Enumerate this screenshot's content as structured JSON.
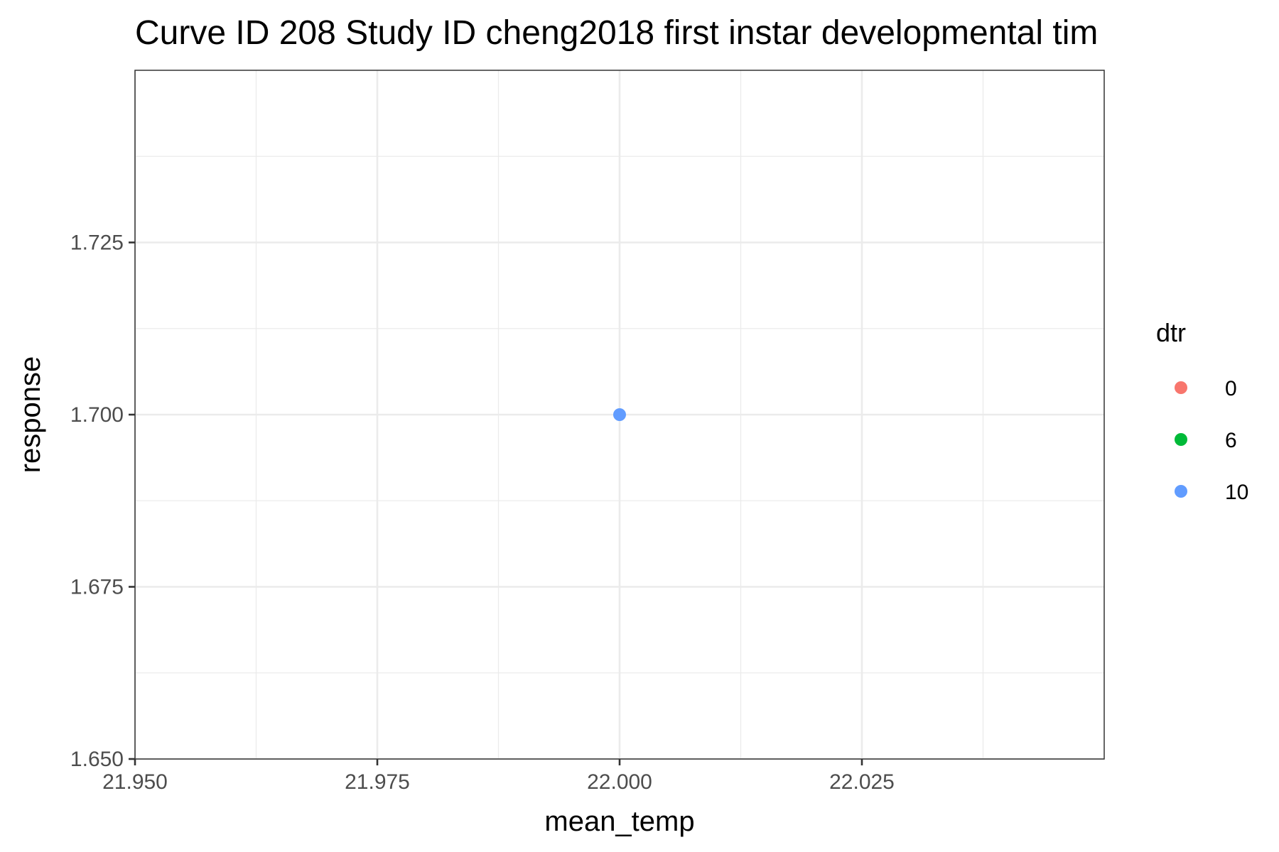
{
  "chart_data": {
    "type": "scatter",
    "title": "Curve ID 208 Study ID cheng2018 first instar developmental tim",
    "xlabel": "mean_temp",
    "ylabel": "response",
    "xlim": [
      21.95,
      22.05
    ],
    "ylim": [
      1.65,
      1.75
    ],
    "x_ticks": [
      21.95,
      21.975,
      22.0,
      22.025
    ],
    "x_tick_labels": [
      "21.950",
      "21.975",
      "22.000",
      "22.025"
    ],
    "y_ticks": [
      1.65,
      1.675,
      1.7,
      1.725
    ],
    "y_tick_labels": [
      "1.650",
      "1.675",
      "1.700",
      "1.725"
    ],
    "grid": true,
    "legend": {
      "title": "dtr",
      "position": "right",
      "entries": [
        {
          "label": "0",
          "color": "#F8766D"
        },
        {
          "label": "6",
          "color": "#00BA38"
        },
        {
          "label": "10",
          "color": "#619CFF"
        }
      ]
    },
    "series": [
      {
        "name": "0",
        "color": "#F8766D",
        "points": []
      },
      {
        "name": "6",
        "color": "#00BA38",
        "points": []
      },
      {
        "name": "10",
        "color": "#619CFF",
        "points": [
          {
            "x": 22.0,
            "y": 1.7
          }
        ]
      }
    ]
  }
}
